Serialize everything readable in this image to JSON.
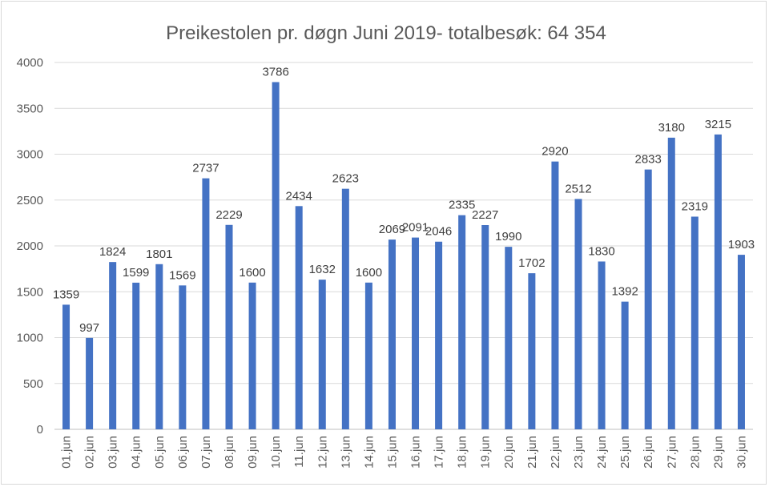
{
  "chart_data": {
    "type": "bar",
    "title": "Preikestolen pr. døgn Juni 2019- totalbesøk: 64 354",
    "xlabel": "",
    "ylabel": "",
    "ylim": [
      0,
      4000
    ],
    "yticks": [
      0,
      500,
      1000,
      1500,
      2000,
      2500,
      3000,
      3500,
      4000
    ],
    "grid": true,
    "legend": "none",
    "bar_color": "#4472C4",
    "categories": [
      "01.jun",
      "02.jun",
      "03.jun",
      "04.jun",
      "05.jun",
      "06.jun",
      "07.jun",
      "08.jun",
      "09.jun",
      "10.jun",
      "11.jun",
      "12.jun",
      "13.jun",
      "14.jun",
      "15.jun",
      "16.jun",
      "17.jun",
      "18.jun",
      "19.jun",
      "20.jun",
      "21.jun",
      "22.jun",
      "23.jun",
      "24.jun",
      "25.jun",
      "26.jun",
      "27.jun",
      "28.jun",
      "29.jun",
      "30.jun"
    ],
    "values": [
      1359,
      997,
      1824,
      1599,
      1801,
      1569,
      2737,
      2229,
      1600,
      3786,
      2434,
      1632,
      2623,
      1600,
      2069,
      2091,
      2046,
      2335,
      2227,
      1990,
      1702,
      2920,
      2512,
      1830,
      1392,
      2833,
      3180,
      2319,
      3215,
      1903
    ]
  }
}
